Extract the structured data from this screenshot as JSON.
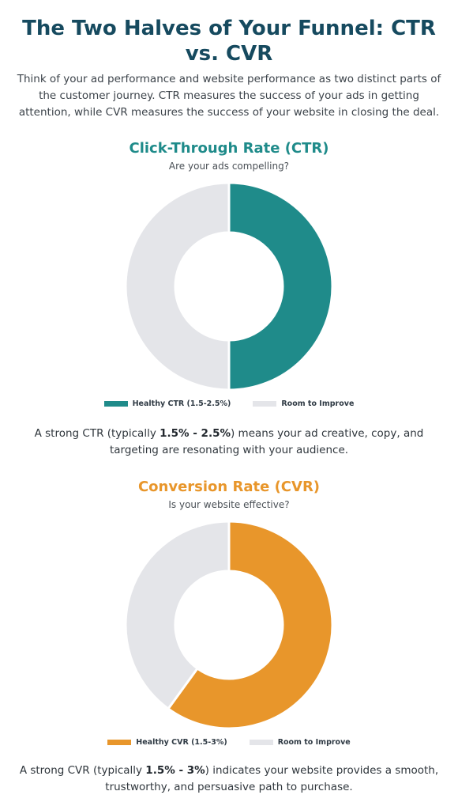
{
  "header": {
    "title": "The Two Halves of Your Funnel: CTR vs. CVR",
    "intro": "Think of your ad performance and website performance as two distinct parts of the customer journey. CTR measures the success of your ads in getting attention, while CVR measures the success of your website in closing the deal."
  },
  "ctr": {
    "title": "Click-Through Rate (CTR)",
    "subtitle": "Are your ads compelling?",
    "desc_before": "A strong CTR (typically ",
    "desc_bold": "1.5% - 2.5%",
    "desc_after": ") means your ad creative, copy, and targeting are resonating with your audience."
  },
  "cvr": {
    "title": "Conversion Rate (CVR)",
    "subtitle": "Is your website effective?",
    "desc_before": "A strong CVR (typically ",
    "desc_bold": "1.5% - 3%",
    "desc_after": ") indicates your website provides a smooth, trustworthy, and persuasive path to purchase."
  },
  "colors": {
    "heading": "#164a5f",
    "ctr_accent": "#1f8b8a",
    "cvr_accent": "#e8962b",
    "remainder": "#e4e5e9"
  },
  "chart_data": [
    {
      "type": "pie",
      "title": "Click-Through Rate (CTR)",
      "categories": [
        "Healthy CTR (1.5-2.5%)",
        "Room to Improve"
      ],
      "values": [
        50,
        50
      ],
      "colors": [
        "#1f8b8a",
        "#e4e5e9"
      ],
      "legend": "bottom"
    },
    {
      "type": "pie",
      "title": "Conversion Rate (CVR)",
      "categories": [
        "Healthy CVR (1.5-3%)",
        "Room to Improve"
      ],
      "values": [
        60,
        40
      ],
      "colors": [
        "#e8962b",
        "#e4e5e9"
      ],
      "legend": "bottom"
    }
  ]
}
